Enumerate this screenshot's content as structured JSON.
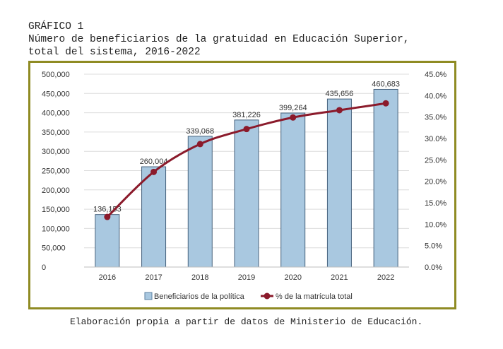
{
  "header": {
    "label": "GRÁFICO 1",
    "title_line1": "Número de beneficiarios de la gratuidad en Educación Superior,",
    "title_line2": "total del sistema, 2016-2022"
  },
  "source": "Elaboración propia a partir de datos de Ministerio de Educación.",
  "chart_data": {
    "type": "bar",
    "categories": [
      "2016",
      "2017",
      "2018",
      "2019",
      "2020",
      "2021",
      "2022"
    ],
    "series": [
      {
        "name": "Beneficiarios de la política",
        "kind": "bar",
        "axis": "left",
        "color": "#a9c8e0",
        "values": [
          136153,
          260004,
          339068,
          381226,
          399264,
          435656,
          460683
        ],
        "labels": [
          "136,153",
          "260,004",
          "339,068",
          "381,226",
          "399,264",
          "435,656",
          "460,683"
        ]
      },
      {
        "name": "% de la matrícula total",
        "kind": "line",
        "axis": "right",
        "color": "#8b1a2b",
        "values": [
          11.7,
          22.2,
          28.7,
          32.2,
          34.9,
          36.6,
          38.2
        ]
      }
    ],
    "left_axis": {
      "ylim": [
        0,
        500000
      ],
      "ticks": [
        "0",
        "50,000",
        "100,000",
        "150,000",
        "200,000",
        "250,000",
        "300,000",
        "350,000",
        "400,000",
        "450,000",
        "500,000"
      ]
    },
    "right_axis": {
      "ylim": [
        0,
        45
      ],
      "ticks": [
        "0.0%",
        "5.0%",
        "10.0%",
        "15.0%",
        "20.0%",
        "25.0%",
        "30.0%",
        "35.0%",
        "40.0%",
        "45.0%"
      ]
    },
    "grid": true,
    "legend_position": "bottom",
    "frame_color": "#8f8b23"
  }
}
